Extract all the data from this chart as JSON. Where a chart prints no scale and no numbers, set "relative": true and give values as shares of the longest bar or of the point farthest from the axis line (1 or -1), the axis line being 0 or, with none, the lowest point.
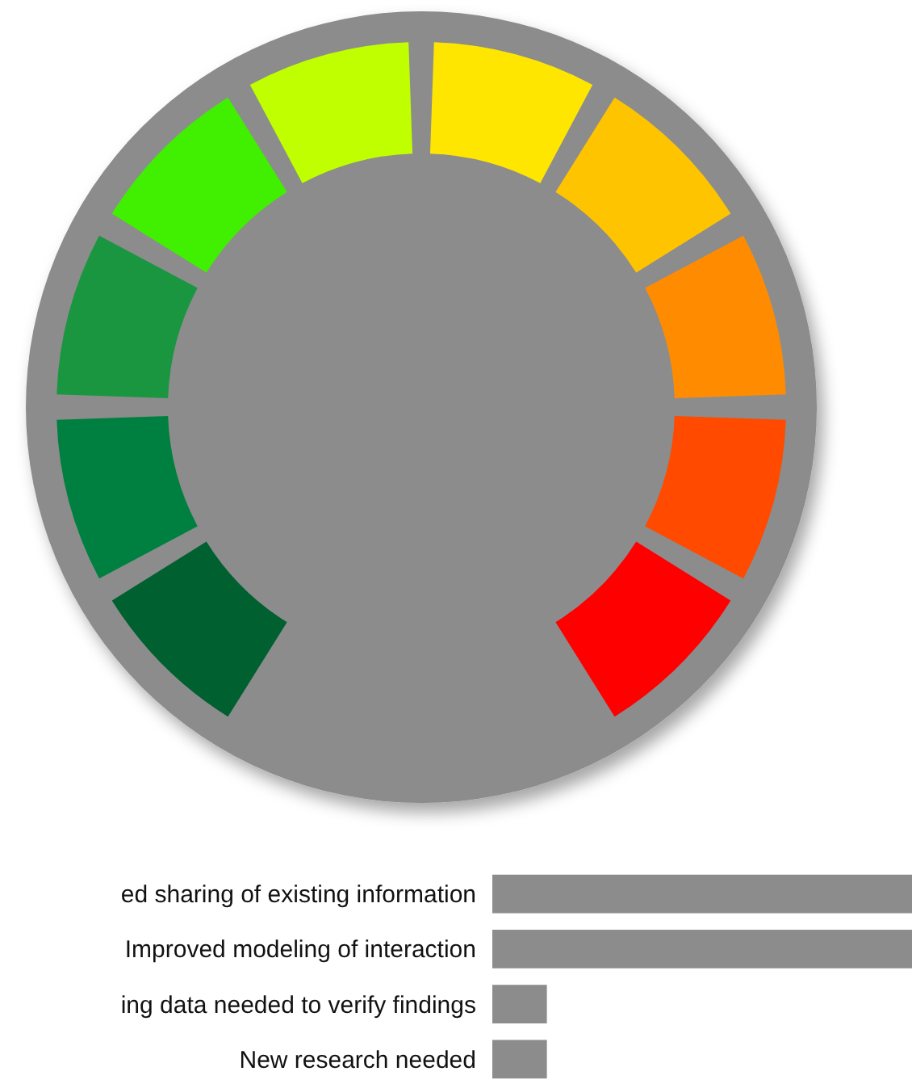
{
  "chart_data": {
    "type": "bar",
    "orientation": "horizontal",
    "relative": true,
    "categories": [
      "ed sharing of existing information",
      "Improved modeling of interaction",
      "ing data needed to verify findings",
      "New research needed"
    ],
    "values": [
      1,
      1,
      0.13,
      0.13
    ],
    "color": "#8c8c8c"
  }
}
